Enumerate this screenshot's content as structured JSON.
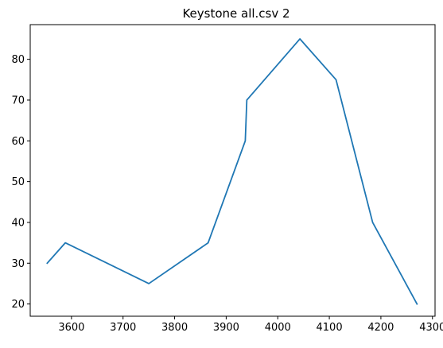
{
  "chart_data": {
    "type": "line",
    "title": "Keystone all.csv 2",
    "xlabel": "",
    "ylabel": "",
    "xlim": [
      3520,
      4305
    ],
    "ylim": [
      17,
      88.5
    ],
    "xticks": [
      3600,
      3700,
      3800,
      3900,
      4000,
      4100,
      4200,
      4300
    ],
    "yticks": [
      20,
      30,
      40,
      50,
      60,
      70,
      80
    ],
    "grid": false,
    "legend": "none",
    "series": [
      {
        "color": "#1f77b4",
        "x": [
          3553,
          3588,
          3750,
          3865,
          3937,
          3940,
          4043,
          4113,
          4184,
          4270
        ],
        "y": [
          30,
          35,
          25,
          35,
          60,
          70,
          85,
          75,
          40,
          20
        ]
      }
    ]
  }
}
